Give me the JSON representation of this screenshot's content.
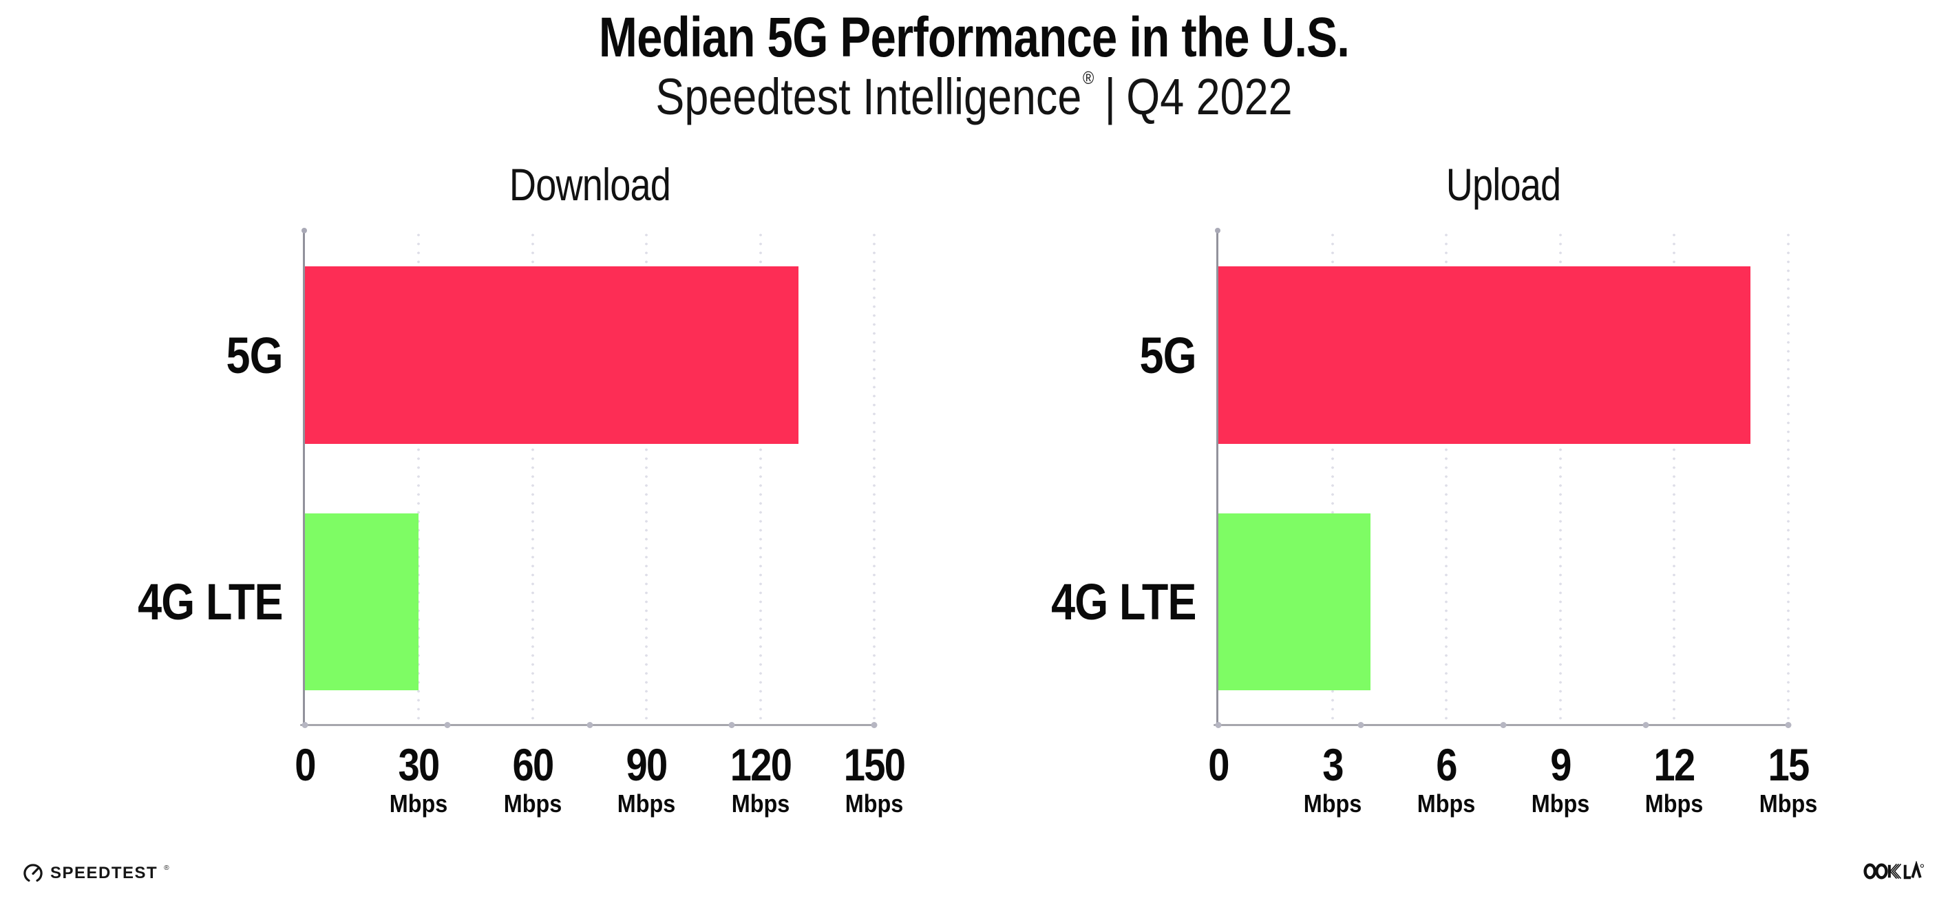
{
  "header": {
    "title": "Median 5G Performance in the U.S.",
    "subtitle": {
      "brand": "Speedtest Intelligence",
      "registered": "®",
      "divider": "|",
      "period": "Q4 2022"
    }
  },
  "chart_data": [
    {
      "type": "bar",
      "orientation": "horizontal",
      "title": "Download",
      "categories": [
        "5G",
        "4G LTE"
      ],
      "values": [
        130,
        30
      ],
      "tick_unit": "Mbps",
      "xlim": [
        0,
        150
      ],
      "xticks": [
        0,
        30,
        60,
        90,
        120,
        150
      ],
      "bar_colors": [
        "#FD2D55",
        "#7EFC64"
      ],
      "grid": "dotted-vertical",
      "legend": "none"
    },
    {
      "type": "bar",
      "orientation": "horizontal",
      "title": "Upload",
      "categories": [
        "5G",
        "4G LTE"
      ],
      "values": [
        14,
        4
      ],
      "tick_unit": "Mbps",
      "xlim": [
        0,
        15
      ],
      "xticks": [
        0,
        3,
        6,
        9,
        12,
        15
      ],
      "bar_colors": [
        "#FD2D55",
        "#7EFC64"
      ],
      "grid": "dotted-vertical",
      "legend": "none"
    }
  ],
  "footer": {
    "speedtest": {
      "label": "SPEEDTEST",
      "registered": "®",
      "icon": "speedtest-gauge-icon"
    },
    "ookla": {
      "label": "OOKLA",
      "registered": "®",
      "icon": "ookla-wordmark-icon"
    }
  },
  "colors": {
    "bar_5g": "#FD2D55",
    "bar_4g_lte": "#7EFC64",
    "text": "#0A0A0A",
    "axis": "#92929C",
    "baseline": "#A6A6AD",
    "gridline_dots": "#DEDEE8",
    "background": "#FFFFFF"
  }
}
